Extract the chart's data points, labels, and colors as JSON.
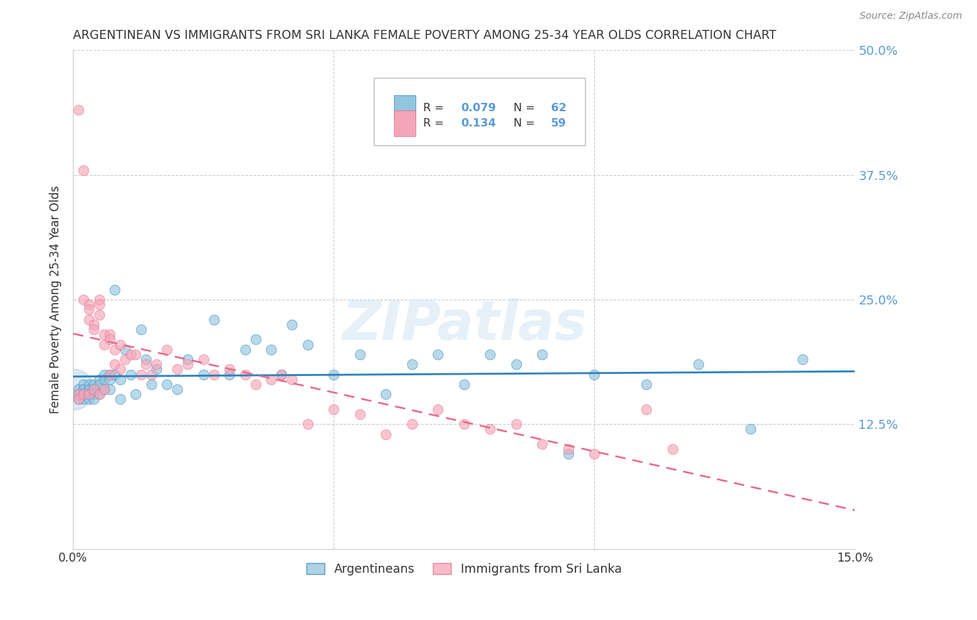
{
  "title": "ARGENTINEAN VS IMMIGRANTS FROM SRI LANKA FEMALE POVERTY AMONG 25-34 YEAR OLDS CORRELATION CHART",
  "source": "Source: ZipAtlas.com",
  "ylabel": "Female Poverty Among 25-34 Year Olds",
  "xlim": [
    0.0,
    0.15
  ],
  "ylim": [
    0.0,
    0.5
  ],
  "ytick_vals": [
    0.0,
    0.125,
    0.25,
    0.375,
    0.5
  ],
  "ytick_labels": [
    "",
    "12.5%",
    "25.0%",
    "37.5%",
    "50.0%"
  ],
  "xtick_vals": [
    0.0,
    0.05,
    0.1,
    0.15
  ],
  "xtick_labels": [
    "0.0%",
    "",
    "",
    "15.0%"
  ],
  "argentinean_R": 0.079,
  "argentinean_N": 62,
  "srilanka_R": 0.134,
  "srilanka_N": 59,
  "blue_color": "#92c5de",
  "pink_color": "#f4a6b8",
  "blue_line_color": "#3182bd",
  "pink_line_color": "#e8698a",
  "right_axis_color": "#5b9bd5",
  "background_color": "#ffffff",
  "watermark": "ZIPatlas",
  "argentinean_x": [
    0.001,
    0.001,
    0.001,
    0.002,
    0.002,
    0.002,
    0.002,
    0.003,
    0.003,
    0.003,
    0.003,
    0.004,
    0.004,
    0.004,
    0.004,
    0.005,
    0.005,
    0.005,
    0.006,
    0.006,
    0.006,
    0.007,
    0.007,
    0.007,
    0.008,
    0.008,
    0.009,
    0.009,
    0.01,
    0.011,
    0.012,
    0.013,
    0.014,
    0.015,
    0.016,
    0.018,
    0.02,
    0.022,
    0.025,
    0.027,
    0.03,
    0.033,
    0.035,
    0.038,
    0.04,
    0.042,
    0.045,
    0.05,
    0.055,
    0.06,
    0.065,
    0.07,
    0.075,
    0.08,
    0.085,
    0.09,
    0.095,
    0.1,
    0.11,
    0.12,
    0.13,
    0.14
  ],
  "argentinean_y": [
    0.16,
    0.155,
    0.15,
    0.165,
    0.16,
    0.155,
    0.15,
    0.165,
    0.16,
    0.155,
    0.15,
    0.165,
    0.16,
    0.155,
    0.15,
    0.17,
    0.165,
    0.155,
    0.175,
    0.17,
    0.16,
    0.175,
    0.17,
    0.16,
    0.26,
    0.175,
    0.17,
    0.15,
    0.2,
    0.175,
    0.155,
    0.22,
    0.19,
    0.165,
    0.18,
    0.165,
    0.16,
    0.19,
    0.175,
    0.23,
    0.175,
    0.2,
    0.21,
    0.2,
    0.175,
    0.225,
    0.205,
    0.175,
    0.195,
    0.155,
    0.185,
    0.195,
    0.165,
    0.195,
    0.185,
    0.195,
    0.095,
    0.175,
    0.165,
    0.185,
    0.12,
    0.19
  ],
  "srilanka_x": [
    0.001,
    0.001,
    0.001,
    0.002,
    0.002,
    0.002,
    0.003,
    0.003,
    0.003,
    0.003,
    0.004,
    0.004,
    0.004,
    0.005,
    0.005,
    0.005,
    0.005,
    0.006,
    0.006,
    0.006,
    0.007,
    0.007,
    0.007,
    0.008,
    0.008,
    0.009,
    0.009,
    0.01,
    0.011,
    0.012,
    0.013,
    0.014,
    0.015,
    0.016,
    0.018,
    0.02,
    0.022,
    0.025,
    0.027,
    0.03,
    0.033,
    0.035,
    0.038,
    0.04,
    0.042,
    0.045,
    0.05,
    0.055,
    0.06,
    0.065,
    0.07,
    0.075,
    0.08,
    0.085,
    0.09,
    0.095,
    0.1,
    0.11,
    0.115
  ],
  "srilanka_y": [
    0.44,
    0.155,
    0.15,
    0.38,
    0.25,
    0.155,
    0.245,
    0.24,
    0.23,
    0.155,
    0.225,
    0.22,
    0.16,
    0.25,
    0.245,
    0.235,
    0.155,
    0.215,
    0.205,
    0.16,
    0.215,
    0.21,
    0.175,
    0.2,
    0.185,
    0.205,
    0.18,
    0.19,
    0.195,
    0.195,
    0.175,
    0.185,
    0.175,
    0.185,
    0.2,
    0.18,
    0.185,
    0.19,
    0.175,
    0.18,
    0.175,
    0.165,
    0.17,
    0.175,
    0.17,
    0.125,
    0.14,
    0.135,
    0.115,
    0.125,
    0.14,
    0.125,
    0.12,
    0.125,
    0.105,
    0.1,
    0.095,
    0.14,
    0.1
  ]
}
